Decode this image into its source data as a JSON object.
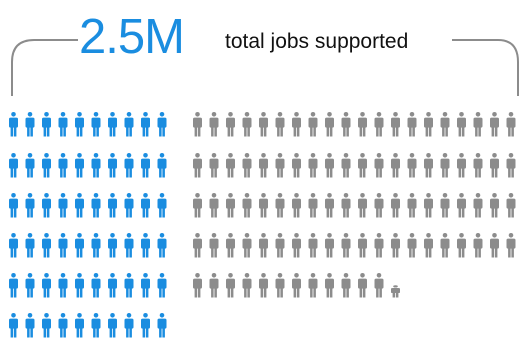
{
  "chart_data": {
    "type": "pictogram",
    "headline_value": "2.5M",
    "headline_label": "total jobs supported",
    "series": [
      {
        "name": "",
        "icon_count": 60,
        "color": "#1a8de0"
      },
      {
        "name": "",
        "icon_count": 92.5,
        "color": "#8c8c8c"
      }
    ],
    "icon": "person-icon",
    "bracket_color": "#8c8c8c"
  }
}
